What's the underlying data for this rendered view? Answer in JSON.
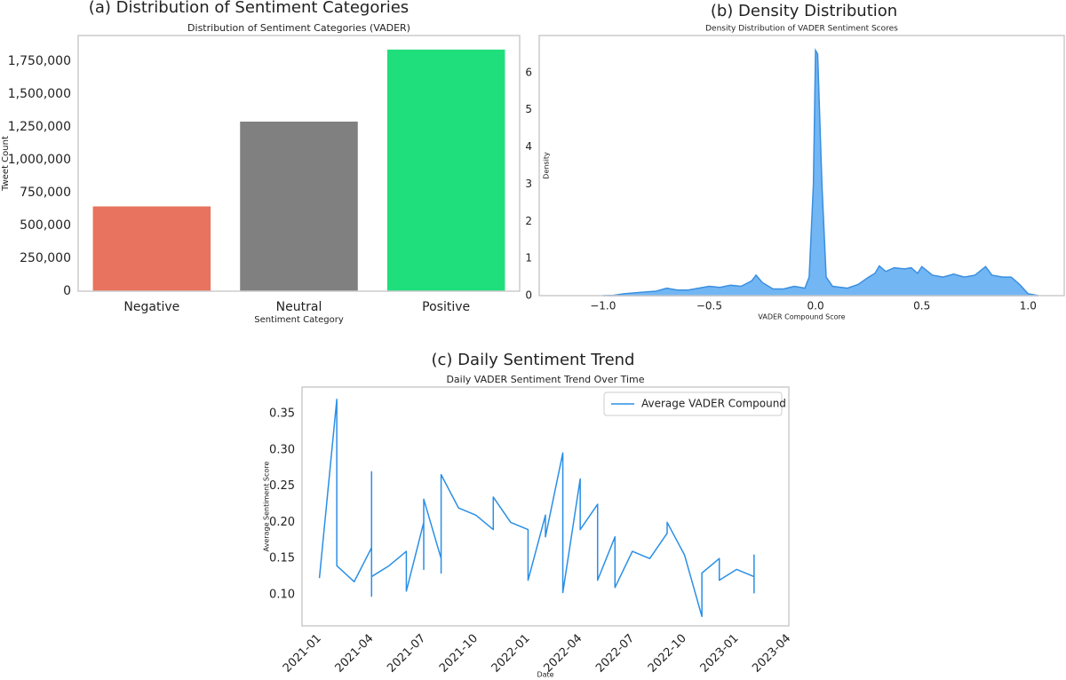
{
  "chart_data": [
    {
      "type": "bar",
      "panel_title": "(a) Distribution of Sentiment Categories",
      "title": "Distribution of Sentiment Categories (VADER)",
      "x_label": "Sentiment Category",
      "y_label": "Tweet Count",
      "categories": [
        "Negative",
        "Neutral",
        "Positive"
      ],
      "values": [
        645000,
        1290000,
        1838000
      ],
      "colors": [
        "#e8735e",
        "#808080",
        "#1fde7c"
      ],
      "ylim": [
        0,
        1945000
      ],
      "yticks": [
        0,
        {
          "value": 250000,
          "label": "250,000"
        },
        {
          "value": 500000,
          "label": "500,000"
        },
        {
          "value": 750000,
          "label": "750,000"
        },
        {
          "value": 1000000,
          "label": "1,000,000"
        },
        {
          "value": 1250000,
          "label": "1,250,000"
        },
        {
          "value": 1500000,
          "label": "1,500,000"
        },
        {
          "value": 1750000,
          "label": "1,750,000"
        }
      ],
      "grid": false
    },
    {
      "type": "area",
      "panel_title": "(b) Density Distribution",
      "title": "Density Distribution of VADER Sentiment Scores",
      "x_label": "VADER Compound Score",
      "y_label": "Density",
      "x": [
        -1.0,
        -0.95,
        -0.9,
        -0.8,
        -0.75,
        -0.7,
        -0.65,
        -0.6,
        -0.5,
        -0.45,
        -0.4,
        -0.35,
        -0.3,
        -0.28,
        -0.25,
        -0.2,
        -0.15,
        -0.1,
        -0.05,
        -0.03,
        -0.01,
        0.0,
        0.01,
        0.03,
        0.05,
        0.08,
        0.15,
        0.2,
        0.25,
        0.28,
        0.3,
        0.33,
        0.37,
        0.42,
        0.45,
        0.48,
        0.5,
        0.55,
        0.6,
        0.65,
        0.7,
        0.75,
        0.8,
        0.83,
        0.88,
        0.92,
        0.96,
        1.0,
        1.05
      ],
      "values": [
        0,
        0.01,
        0.05,
        0.1,
        0.12,
        0.2,
        0.15,
        0.15,
        0.25,
        0.22,
        0.28,
        0.25,
        0.4,
        0.55,
        0.35,
        0.18,
        0.18,
        0.25,
        0.2,
        0.5,
        3.0,
        6.6,
        6.5,
        3.0,
        0.5,
        0.25,
        0.2,
        0.3,
        0.5,
        0.6,
        0.8,
        0.65,
        0.75,
        0.72,
        0.75,
        0.6,
        0.78,
        0.55,
        0.5,
        0.58,
        0.5,
        0.55,
        0.78,
        0.55,
        0.5,
        0.5,
        0.3,
        0.05,
        0
      ],
      "color": "#72b6f4",
      "line_color": "#3a8fe0",
      "xlim": [
        -1.3,
        1.17
      ],
      "ylim": [
        0,
        7.0
      ],
      "xticks": [
        {
          "value": -1.0,
          "label": "−1.0"
        },
        {
          "value": -0.5,
          "label": "−0.5"
        },
        {
          "value": 0.0,
          "label": "0.0"
        },
        {
          "value": 0.5,
          "label": "0.5"
        },
        {
          "value": 1.0,
          "label": "1.0"
        }
      ],
      "yticks": [
        0,
        1,
        2,
        3,
        4,
        5,
        6
      ],
      "grid": false
    },
    {
      "type": "line",
      "panel_title": "(c) Daily Sentiment Trend",
      "title": "Daily VADER Sentiment Trend Over Time",
      "x_label": "Date",
      "y_label": "Average Sentiment Score",
      "x": [
        "2021-01",
        "2021-02",
        "2021-02",
        "2021-03",
        "2021-04",
        "2021-04",
        "2021-04",
        "2021-04",
        "2021-05",
        "2021-06",
        "2021-06",
        "2021-07",
        "2021-07",
        "2021-07",
        "2021-08",
        "2021-08",
        "2021-08",
        "2021-08",
        "2021-09",
        "2021-10",
        "2021-11",
        "2021-11",
        "2021-12",
        "2022-01",
        "2022-01",
        "2022-02",
        "2022-02",
        "2022-03",
        "2022-03",
        "2022-04",
        "2022-04",
        "2022-05",
        "2022-05",
        "2022-06",
        "2022-06",
        "2022-07",
        "2022-08",
        "2022-09",
        "2022-09",
        "2022-10",
        "2022-11",
        "2022-11",
        "2022-12",
        "2022-12",
        "2023-01",
        "2023-02",
        "2023-02",
        "2023-02"
      ],
      "series": [
        {
          "name": "Average VADER Compound",
          "color": "#2a8fe6",
          "values": [
            0.123,
            0.37,
            0.14,
            0.118,
            0.165,
            0.098,
            0.27,
            0.125,
            0.14,
            0.16,
            0.105,
            0.2,
            0.135,
            0.232,
            0.15,
            0.245,
            0.13,
            0.266,
            0.22,
            0.21,
            0.19,
            0.235,
            0.2,
            0.19,
            0.12,
            0.21,
            0.18,
            0.296,
            0.103,
            0.26,
            0.19,
            0.225,
            0.12,
            0.18,
            0.11,
            0.16,
            0.15,
            0.185,
            0.2,
            0.155,
            0.07,
            0.13,
            0.15,
            0.12,
            0.135,
            0.125,
            0.155,
            0.102
          ]
        }
      ],
      "xlim": [
        "2020-12",
        "2023-04"
      ],
      "ylim": [
        0.057,
        0.387
      ],
      "xticks": [
        "2021-01",
        "2021-04",
        "2021-07",
        "2021-10",
        "2022-01",
        "2022-04",
        "2022-07",
        "2022-10",
        "2023-01",
        "2023-04"
      ],
      "yticks": [
        {
          "value": 0.1,
          "label": "0.10"
        },
        0.15,
        {
          "value": 0.2,
          "label": "0.20"
        },
        0.25,
        {
          "value": 0.3,
          "label": "0.30"
        },
        0.35
      ],
      "legend": "upper right",
      "grid": false
    }
  ]
}
